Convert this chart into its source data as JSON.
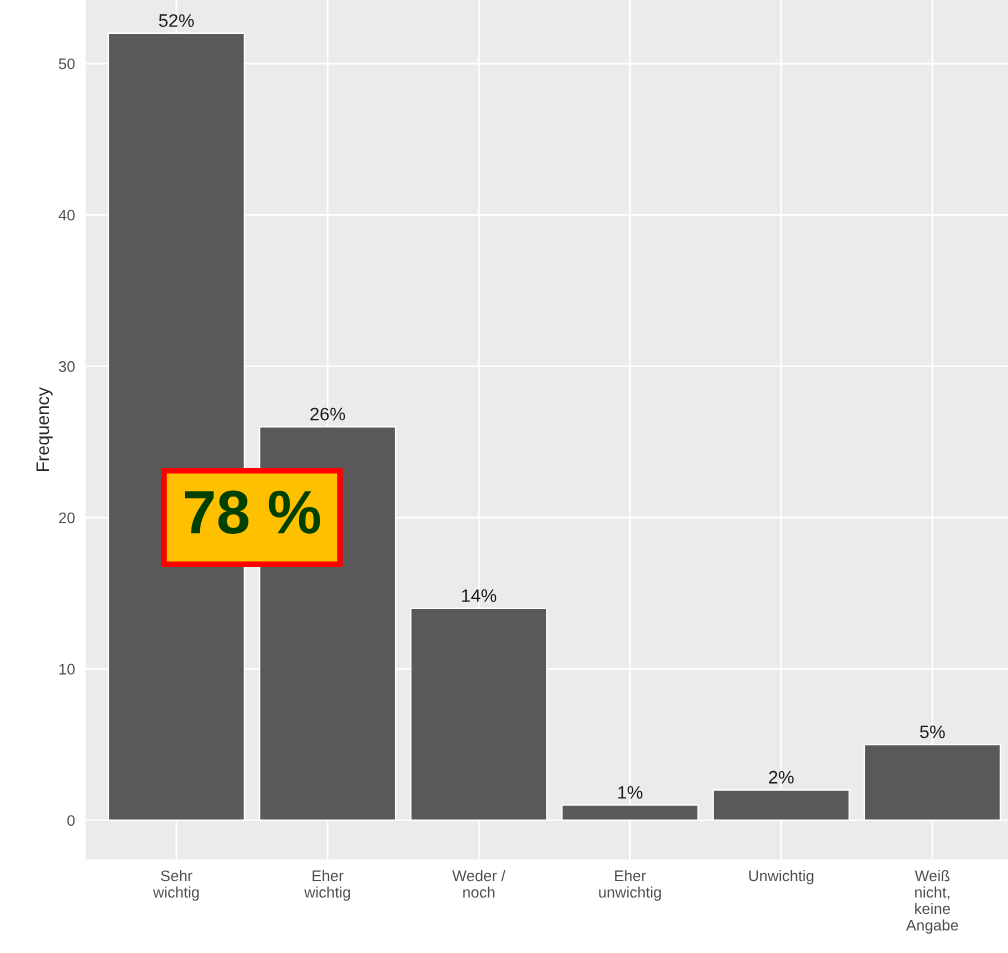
{
  "chart_data": {
    "type": "bar",
    "categories": [
      "Sehr\nwichtig",
      "Eher\nwichtig",
      "Weder /\nnoch",
      "Eher\nunwichtig",
      "Unwichtig",
      "Weiß\nnicht,\nkeine\nAngabe"
    ],
    "values": [
      52,
      26,
      14,
      1,
      2,
      5
    ],
    "value_labels": [
      "52%",
      "26%",
      "14%",
      "1%",
      "2%",
      "5%"
    ],
    "color": "#595959",
    "ylabel": "Frequency",
    "ylim": [
      -2.6,
      54.2
    ],
    "yticks": [
      0,
      10,
      20,
      30,
      40,
      50
    ],
    "grid": true,
    "annotations": [
      "78 %"
    ]
  }
}
